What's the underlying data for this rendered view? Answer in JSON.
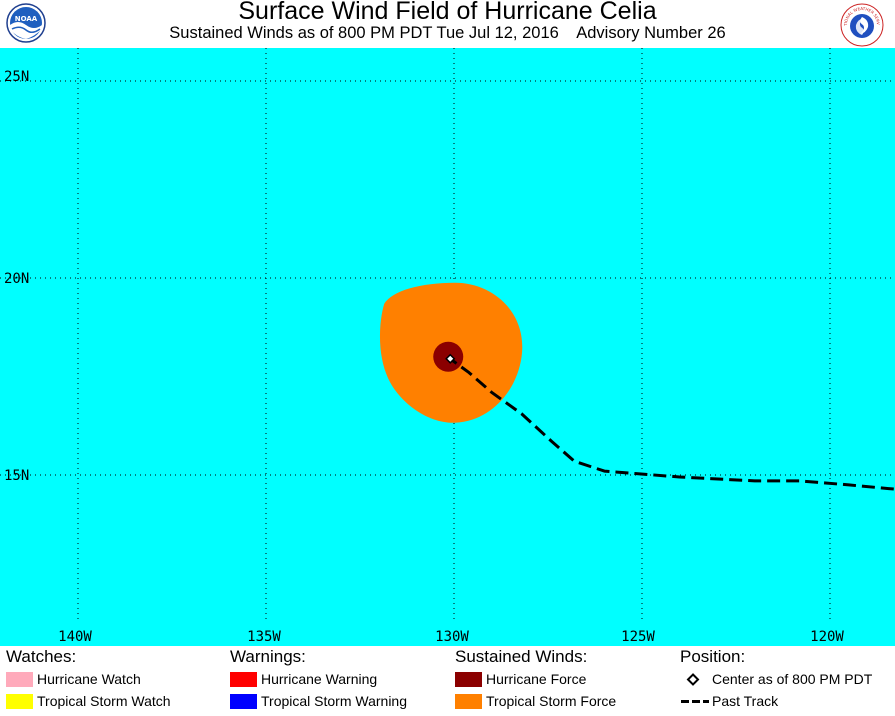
{
  "header": {
    "title": "Surface Wind Field of Hurricane Celia",
    "subtitle": "Sustained Winds as of 800 PM PDT Tue Jul 12, 2016    Advisory Number 26"
  },
  "logos": {
    "left": {
      "text": "NOAA",
      "icon": "noaa-logo"
    },
    "right": {
      "icon": "nws-logo",
      "text": "NATIONAL WEATHER SERVICE"
    }
  },
  "map": {
    "ocean_color": "#00ffff",
    "lat_labels": [
      "25N",
      "20N",
      "15N"
    ],
    "lon_labels": [
      "140W",
      "135W",
      "130W",
      "125W",
      "120W"
    ],
    "center": {
      "lon": -130.1,
      "lat": 17.95
    },
    "past_track": [
      [
        -117.8,
        14.6
      ],
      [
        -119.5,
        14.75
      ],
      [
        -120.8,
        14.85
      ],
      [
        -122,
        14.85
      ],
      [
        -124,
        14.95
      ],
      [
        -126,
        15.1
      ],
      [
        -126.8,
        15.35
      ],
      [
        -127.4,
        15.85
      ],
      [
        -128.2,
        16.55
      ],
      [
        -129,
        17.1
      ],
      [
        -129.6,
        17.6
      ],
      [
        -130.1,
        17.95
      ]
    ],
    "wind_field_colors": {
      "tropical_storm_force": "#ff8000",
      "hurricane_force": "#8b0000"
    }
  },
  "legend": {
    "watches": {
      "heading": "Watches:",
      "items": [
        {
          "label": "Hurricane Watch",
          "color": "#ffaabb"
        },
        {
          "label": "Tropical Storm Watch",
          "color": "#ffff00"
        }
      ]
    },
    "warnings": {
      "heading": "Warnings:",
      "items": [
        {
          "label": "Hurricane Warning",
          "color": "#ff0000"
        },
        {
          "label": "Tropical Storm Warning",
          "color": "#0000ff"
        }
      ]
    },
    "sustained_winds": {
      "heading": "Sustained Winds:",
      "items": [
        {
          "label": "Hurricane Force",
          "color": "#8b0000"
        },
        {
          "label": "Tropical Storm Force",
          "color": "#ff8000"
        }
      ]
    },
    "position": {
      "heading": "Position:",
      "items": [
        {
          "label": "Center as of 800 PM PDT",
          "icon": "diamond-icon"
        },
        {
          "label": "Past Track",
          "icon": "dashed-line-icon"
        }
      ]
    }
  }
}
